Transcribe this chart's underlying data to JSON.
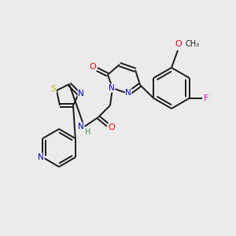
{
  "bg_color": "#ebebeb",
  "bond_color": "#1a1a1a",
  "atom_colors": {
    "N": "#0000ee",
    "O": "#ff0000",
    "S": "#bbbb00",
    "F": "#ee00ee",
    "H": "#448844",
    "C": "#1a1a1a"
  },
  "font_size": 7.0,
  "figsize": [
    3.0,
    3.0
  ],
  "dpi": 100,
  "lw": 1.4
}
